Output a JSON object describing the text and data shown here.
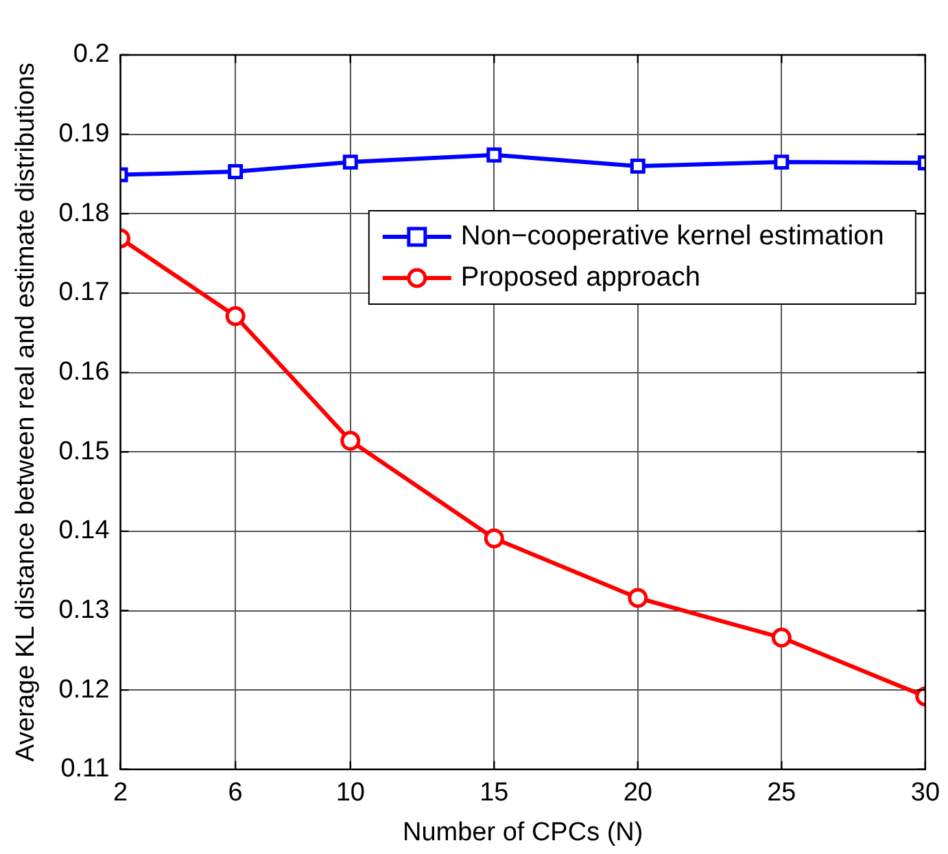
{
  "chart_data": {
    "type": "line",
    "xlabel": "Number of CPCs (N)",
    "ylabel": "Average KL distance between real and estimate distributions",
    "x": [
      2,
      6,
      10,
      15,
      20,
      25,
      30
    ],
    "series": [
      {
        "name": "Non−cooperative kernel estimation",
        "color": "#0000ff",
        "marker": "square",
        "values": [
          0.1849,
          0.1853,
          0.1865,
          0.1874,
          0.186,
          0.1865,
          0.1864
        ]
      },
      {
        "name": "Proposed approach",
        "color": "#ff0000",
        "marker": "circle",
        "values": [
          0.1769,
          0.1671,
          0.1514,
          0.1391,
          0.1316,
          0.1266,
          0.1192
        ]
      }
    ],
    "xlim": [
      2,
      30
    ],
    "xticks": [
      2,
      6,
      10,
      15,
      20,
      25,
      30
    ],
    "ylim": [
      0.11,
      0.2
    ],
    "yticks": [
      0.11,
      0.12,
      0.13,
      0.14,
      0.15,
      0.16,
      0.17,
      0.18,
      0.19,
      0.2
    ],
    "grid": true,
    "legend": "top right",
    "line_style": "solid"
  }
}
